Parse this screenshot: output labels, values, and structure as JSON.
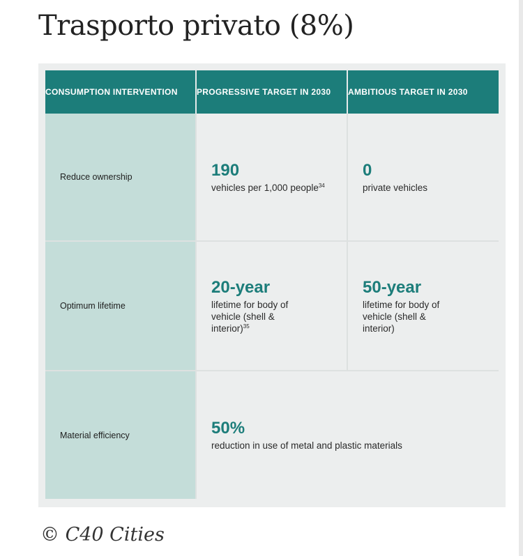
{
  "title": "Trasporto privato (8%)",
  "table": {
    "headers": [
      "CONSUMPTION INTERVENTION",
      "PROGRESSIVE TARGET IN 2030",
      "AMBITIOUS TARGET IN 2030"
    ],
    "rows": [
      {
        "label": "Reduce ownership",
        "progressive": {
          "value": "190",
          "desc": "vehicles per 1,000 people",
          "sup": "34"
        },
        "ambitious": {
          "value": "0",
          "desc": "private vehicles"
        }
      },
      {
        "label": "Optimum lifetime",
        "progressive": {
          "value": "20-year",
          "desc": "lifetime for body of vehicle (shell & interior)",
          "sup": "35"
        },
        "ambitious": {
          "value": "50-year",
          "desc": "lifetime for body of vehicle (shell & interior)"
        }
      },
      {
        "label": "Material efficiency",
        "combined": {
          "value": "50%",
          "desc": "reduction in use of metal and plastic materials"
        }
      }
    ]
  },
  "caption": "© C40 Cities"
}
